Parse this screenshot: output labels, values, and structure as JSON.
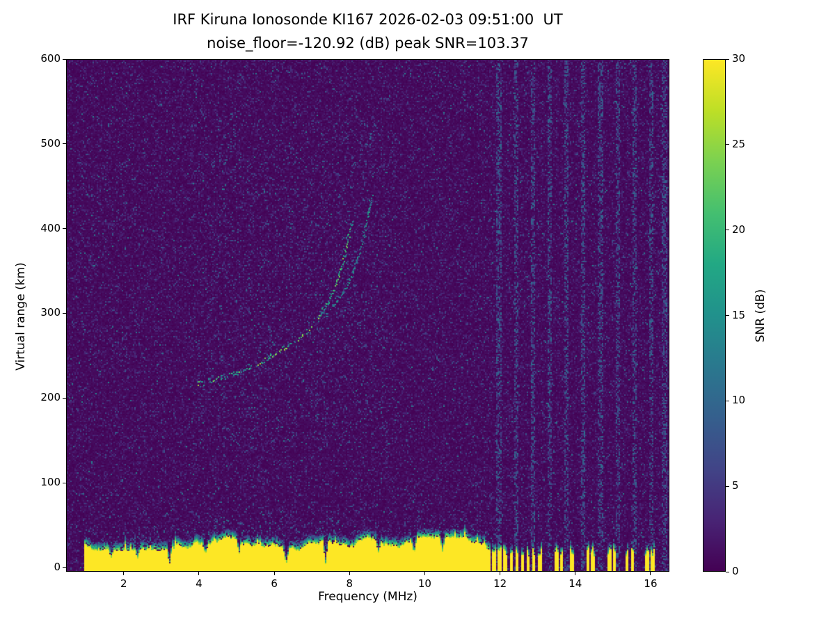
{
  "title": {
    "line1": "IRF Kiruna Ionosonde KI167 2026-02-03 09:51:00  UT",
    "line2": "noise_floor=-120.92 (dB) peak SNR=103.37"
  },
  "chart_data": {
    "type": "heatmap",
    "title": "IRF Kiruna Ionosonde KI167 2026-02-03 09:51:00  UT",
    "subtitle": "noise_floor=-120.92 (dB) peak SNR=103.37",
    "station": "IRF Kiruna",
    "instrument": "Ionosonde KI167",
    "timestamp_ut": "2026-02-03 09:51:00",
    "noise_floor_db": -120.92,
    "peak_snr_db": 103.37,
    "xlabel": "Frequency (MHz)",
    "ylabel": "Virtual range (km)",
    "xlim": [
      0.47,
      16.5
    ],
    "ylim": [
      -5,
      600
    ],
    "xticks": [
      2,
      4,
      6,
      8,
      10,
      12,
      14,
      16
    ],
    "yticks": [
      0,
      100,
      200,
      300,
      400,
      500,
      600
    ],
    "grid": false,
    "colorbar": {
      "label": "SNR (dB)",
      "min": 0,
      "max": 30,
      "ticks": [
        0,
        5,
        10,
        15,
        20,
        25,
        30
      ],
      "colormap": "viridis",
      "stops": [
        [
          0,
          "#440154"
        ],
        [
          0.1,
          "#482475"
        ],
        [
          0.2,
          "#414487"
        ],
        [
          0.3,
          "#355f8d"
        ],
        [
          0.4,
          "#2a788e"
        ],
        [
          0.5,
          "#21918c"
        ],
        [
          0.6,
          "#22a884"
        ],
        [
          0.7,
          "#44bf70"
        ],
        [
          0.8,
          "#7ad151"
        ],
        [
          0.9,
          "#bddf26"
        ],
        [
          1,
          "#fde725"
        ]
      ]
    },
    "background_snr_db": 0,
    "ground_clutter": {
      "freq_range_mhz": [
        0.93,
        11.62
      ],
      "top_km_range": [
        20,
        36
      ],
      "snr_db": 30,
      "notch_freqs_mhz": [
        1.65,
        2.35,
        3.2,
        4.15,
        5.05,
        6.3,
        7.35,
        8.75,
        9.7,
        10.45
      ],
      "major_notch_freqs_mhz": [
        3.2,
        6.3,
        7.35
      ],
      "pulsed_bars_mhz": [
        11.68,
        11.83,
        11.98,
        12.13,
        12.28,
        12.43,
        12.58,
        12.73,
        12.88,
        13.03,
        13.48,
        13.62,
        13.9,
        14.32,
        14.45,
        14.88,
        15.02,
        15.35,
        15.5,
        15.9,
        16.05
      ],
      "pulsed_bar_top_km": 22
    },
    "echo_traces": [
      {
        "name": "main echo trace",
        "snr_db_range": [
          10,
          26
        ],
        "points_mhz_km": [
          [
            3.95,
            218
          ],
          [
            4.2,
            221
          ],
          [
            4.5,
            224
          ],
          [
            4.8,
            228
          ],
          [
            5.1,
            233
          ],
          [
            5.4,
            238
          ],
          [
            5.7,
            245
          ],
          [
            6.0,
            252
          ],
          [
            6.3,
            260
          ],
          [
            6.6,
            269
          ],
          [
            6.9,
            280
          ],
          [
            7.1,
            291
          ],
          [
            7.3,
            304
          ],
          [
            7.5,
            320
          ],
          [
            7.65,
            338
          ],
          [
            7.8,
            358
          ],
          [
            7.9,
            378
          ],
          [
            8.0,
            398
          ],
          [
            8.05,
            412
          ]
        ]
      },
      {
        "name": "upper branch",
        "snr_db_range": [
          7,
          18
        ],
        "points_mhz_km": [
          [
            7.35,
            298
          ],
          [
            7.55,
            308
          ],
          [
            7.75,
            320
          ],
          [
            7.95,
            335
          ],
          [
            8.1,
            352
          ],
          [
            8.25,
            370
          ],
          [
            8.35,
            390
          ],
          [
            8.45,
            408
          ],
          [
            8.52,
            425
          ],
          [
            8.58,
            440
          ]
        ]
      },
      {
        "name": "faint spread echo",
        "snr_db_range": [
          4,
          10
        ],
        "points_mhz_km": [
          [
            7.6,
            430
          ],
          [
            7.9,
            455
          ],
          [
            8.2,
            480
          ],
          [
            8.5,
            505
          ],
          [
            8.7,
            525
          ]
        ]
      }
    ],
    "rfi_stripe_freqs_mhz": [
      11.95,
      12.4,
      12.85,
      13.3,
      13.75,
      14.2,
      14.65,
      15.1,
      15.55,
      16.0,
      16.35
    ]
  }
}
